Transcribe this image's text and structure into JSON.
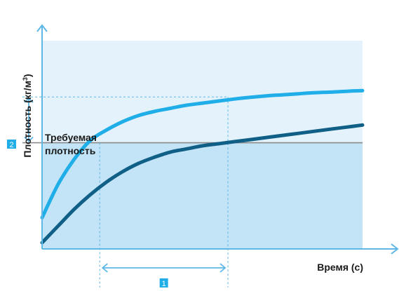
{
  "chart_data": {
    "type": "line",
    "title": "",
    "xlabel": "Время (с)",
    "ylabel_main": "Плотность (кг/м",
    "ylabel_sup": "3",
    "ylabel_close": ")",
    "required_density_label": [
      "Требуемая",
      "плотность"
    ],
    "marker_time": "1",
    "marker_density": "2",
    "grid": false,
    "series": [
      {
        "x": [
          0,
          0.05,
          0.1,
          0.15,
          0.2,
          0.25,
          0.3,
          0.35,
          0.4,
          0.45,
          0.5,
          0.55,
          0.6,
          0.65,
          0.7,
          0.75,
          0.8,
          0.85,
          0.9,
          0.95,
          1.0
        ],
        "values": [
          0.15,
          0.31,
          0.43,
          0.52,
          0.57,
          0.61,
          0.64,
          0.66,
          0.675,
          0.69,
          0.7,
          0.71,
          0.72,
          0.728,
          0.735,
          0.74,
          0.745,
          0.75,
          0.753,
          0.757,
          0.76
        ]
      },
      {
        "x": [
          0,
          0.05,
          0.1,
          0.15,
          0.2,
          0.25,
          0.3,
          0.35,
          0.4,
          0.45,
          0.5,
          0.55,
          0.6,
          0.65,
          0.7,
          0.75,
          0.8,
          0.85,
          0.9,
          0.95,
          1.0
        ],
        "values": [
          0.03,
          0.11,
          0.19,
          0.26,
          0.32,
          0.37,
          0.41,
          0.44,
          0.465,
          0.48,
          0.495,
          0.505,
          0.515,
          0.525,
          0.535,
          0.545,
          0.555,
          0.565,
          0.575,
          0.585,
          0.595
        ]
      }
    ],
    "required_density": 0.51,
    "achieved_density": 0.73,
    "time_required": 0.18,
    "time_achieved": 0.58,
    "xlim": [
      0,
      1
    ],
    "ylim": [
      0,
      1
    ],
    "colors": {
      "light_curve": "#1faee8",
      "dark_curve": "#0f5f86",
      "bg_fill": "#e3f2fb",
      "low_fill": "#c3e3f6",
      "axis": "#5fb7e6",
      "required_line": "#8a8a8a",
      "marker_fill": "#1faee8"
    }
  }
}
